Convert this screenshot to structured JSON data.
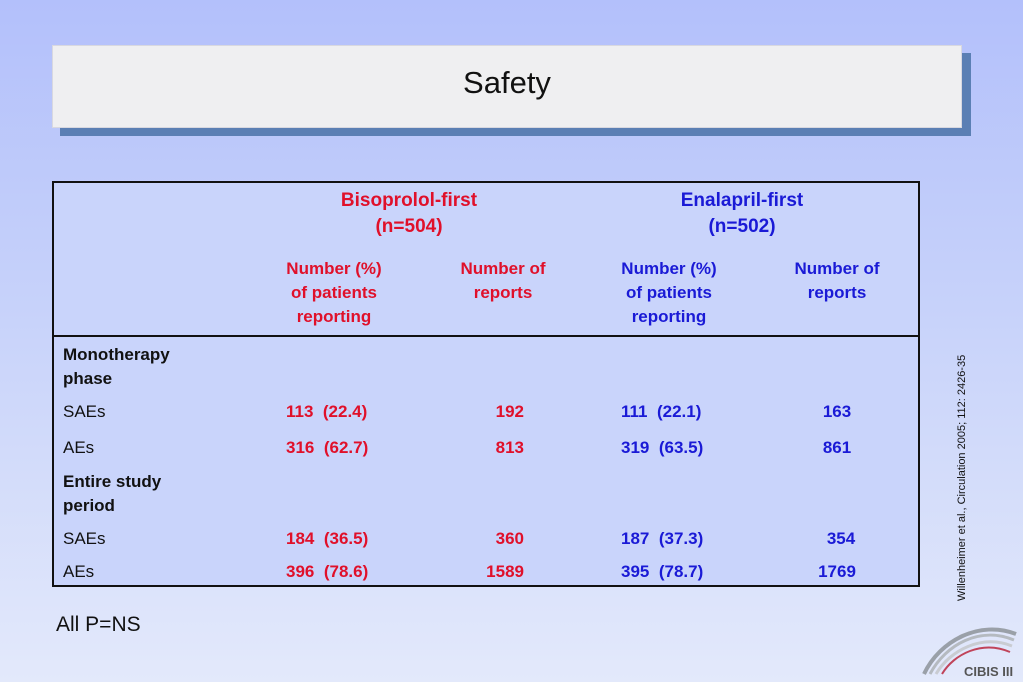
{
  "title": "Safety",
  "table": {
    "groups": [
      {
        "name_line1": "Bisoprolol-first",
        "name_line2": "(n=504)",
        "color": "#e0102a",
        "col1": [
          "Number (%)",
          "of patients",
          "reporting"
        ],
        "col2": [
          "Number of",
          "reports"
        ]
      },
      {
        "name_line1": "Enalapril-first",
        "name_line2": "(n=502)",
        "color": "#1a1ad6",
        "col1": [
          "Number (%)",
          "of patients",
          "reporting"
        ],
        "col2": [
          "Number of",
          "reports"
        ]
      }
    ],
    "sections": [
      {
        "label_line1": "Monotherapy",
        "label_line2": "phase",
        "rows": [
          {
            "label": "SAEs",
            "bis_n": "113",
            "bis_pct": "(22.4)",
            "bis_reports": "192",
            "ena_n": "111",
            "ena_pct": "(22.1)",
            "ena_reports": "163"
          },
          {
            "label": "AEs",
            "bis_n": "316",
            "bis_pct": "(62.7)",
            "bis_reports": "813",
            "ena_n": "319",
            "ena_pct": "(63.5)",
            "ena_reports": "861"
          }
        ]
      },
      {
        "label_line1": "Entire study",
        "label_line2": "period",
        "rows": [
          {
            "label": "SAEs",
            "bis_n": "184",
            "bis_pct": "(36.5)",
            "bis_reports": "360",
            "ena_n": "187",
            "ena_pct": "(37.3)",
            "ena_reports": "354"
          },
          {
            "label": "AEs",
            "bis_n": "396",
            "bis_pct": "(78.6)",
            "bis_reports": "1589",
            "ena_n": "395",
            "ena_pct": "(78.7)",
            "ena_reports": "1769"
          }
        ]
      }
    ]
  },
  "footnote": "All P=NS",
  "citation": "Willenheimer et al., Circulation 2005; 112: 2426-35",
  "logo_text": "CIBIS III",
  "logo_icon": "arch-logo-icon"
}
